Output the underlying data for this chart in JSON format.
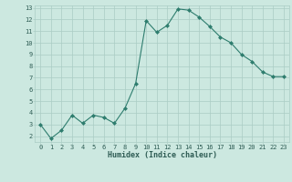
{
  "x": [
    0,
    1,
    2,
    3,
    4,
    5,
    6,
    7,
    8,
    9,
    10,
    11,
    12,
    13,
    14,
    15,
    16,
    17,
    18,
    19,
    20,
    21,
    22,
    23
  ],
  "y": [
    3.0,
    1.8,
    2.5,
    3.8,
    3.1,
    3.8,
    3.6,
    3.1,
    4.4,
    6.5,
    11.9,
    10.9,
    11.5,
    12.9,
    12.8,
    12.2,
    11.4,
    10.5,
    10.0,
    9.0,
    8.4,
    7.5,
    7.1,
    7.1
  ],
  "xlabel": "Humidex (Indice chaleur)",
  "ylim": [
    1.5,
    13.2
  ],
  "xlim": [
    -0.5,
    23.5
  ],
  "yticks": [
    2,
    3,
    4,
    5,
    6,
    7,
    8,
    9,
    10,
    11,
    12,
    13
  ],
  "xticks": [
    0,
    1,
    2,
    3,
    4,
    5,
    6,
    7,
    8,
    9,
    10,
    11,
    12,
    13,
    14,
    15,
    16,
    17,
    18,
    19,
    20,
    21,
    22,
    23
  ],
  "line_color": "#2e7d6e",
  "marker_color": "#2e7d6e",
  "bg_color": "#cce8e0",
  "grid_color": "#aaccc4",
  "tick_label_color": "#2e5c54",
  "xlabel_color": "#2e5c54",
  "font_family": "monospace",
  "tick_fontsize": 5.0,
  "xlabel_fontsize": 6.0
}
